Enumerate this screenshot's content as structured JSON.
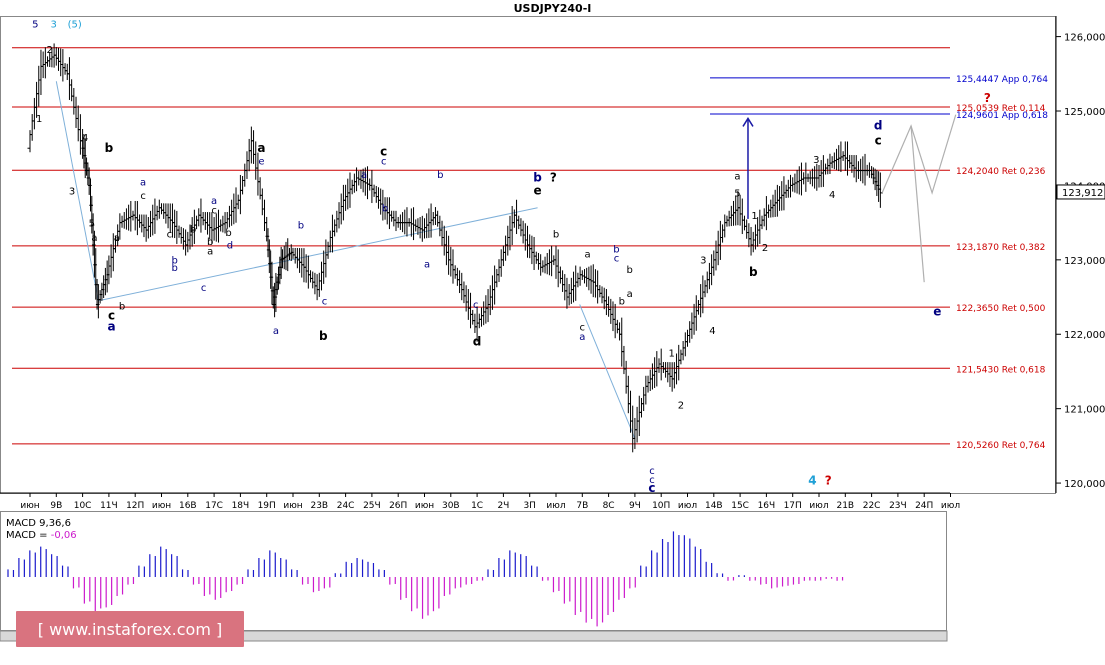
{
  "chart_data": {
    "type": "line",
    "title": "USDJPY240-I",
    "price_axis": {
      "ylim": [
        119.88,
        126.25
      ],
      "ticks": [
        {
          "value": 126.0,
          "label": "126,000"
        },
        {
          "value": 125.0,
          "label": "125,000"
        },
        {
          "value": 124.0,
          "label": "124,000"
        },
        {
          "value": 123.0,
          "label": "123,000"
        },
        {
          "value": 122.0,
          "label": "122,000"
        },
        {
          "value": 121.0,
          "label": "121,000"
        },
        {
          "value": 120.0,
          "label": "120,000"
        }
      ],
      "current_price": {
        "value": 123.912,
        "label": "123,912"
      }
    },
    "time_axis": {
      "labels": [
        "июн",
        "9В",
        "10С",
        "11Ч",
        "12П",
        "июн",
        "16В",
        "17С",
        "18Ч",
        "19П",
        "июн",
        "23В",
        "24С",
        "25Ч",
        "26П",
        "июн",
        "30В",
        "1С",
        "2Ч",
        "3П",
        "июл",
        "7В",
        "8С",
        "9Ч",
        "10П",
        "июл",
        "14В",
        "15С",
        "16Ч",
        "17П",
        "июл",
        "21В",
        "22С",
        "23Ч",
        "24П",
        "июл"
      ]
    },
    "horizontal_levels": [
      {
        "value": 125.85,
        "label": "",
        "color": "#cc0000"
      },
      {
        "value": 125.4447,
        "label": "125,4447 App 0,764",
        "color": "#0000cc"
      },
      {
        "value": 125.0539,
        "label": "125,0539 Ret 0,114",
        "color": "#cc0000"
      },
      {
        "value": 124.9601,
        "label": "124,9601 App 0,618",
        "color": "#0000cc"
      },
      {
        "value": 124.204,
        "label": "124,2040 Ret 0,236",
        "color": "#cc0000"
      },
      {
        "value": 123.187,
        "label": "123,1870 Ret 0,382",
        "color": "#cc0000"
      },
      {
        "value": 122.365,
        "label": "122,3650 Ret 0,500",
        "color": "#cc0000"
      },
      {
        "value": 121.543,
        "label": "121,5430 Ret 0,618",
        "color": "#cc0000"
      },
      {
        "value": 120.526,
        "label": "120,5260 Ret 0,764",
        "color": "#cc0000"
      }
    ],
    "price_path": [
      [
        0,
        124.5
      ],
      [
        0.5,
        125.6
      ],
      [
        1,
        125.75
      ],
      [
        1.5,
        125.5
      ],
      [
        2,
        124.6
      ],
      [
        2.3,
        124.0
      ],
      [
        2.6,
        122.4
      ],
      [
        3,
        122.8
      ],
      [
        3.5,
        123.5
      ],
      [
        4,
        123.6
      ],
      [
        4.5,
        123.4
      ],
      [
        5,
        123.7
      ],
      [
        5.5,
        123.5
      ],
      [
        6,
        123.2
      ],
      [
        6.5,
        123.6
      ],
      [
        7,
        123.4
      ],
      [
        7.5,
        123.5
      ],
      [
        8,
        123.8
      ],
      [
        8.5,
        124.6
      ],
      [
        9,
        123.5
      ],
      [
        9.3,
        122.4
      ],
      [
        9.6,
        123.0
      ],
      [
        10,
        123.1
      ],
      [
        10.5,
        122.9
      ],
      [
        11,
        122.6
      ],
      [
        11.5,
        123.3
      ],
      [
        12,
        123.8
      ],
      [
        12.5,
        124.1
      ],
      [
        13,
        124.0
      ],
      [
        13.5,
        123.7
      ],
      [
        14,
        123.5
      ],
      [
        14.5,
        123.5
      ],
      [
        15,
        123.4
      ],
      [
        15.5,
        123.6
      ],
      [
        16,
        123.0
      ],
      [
        16.5,
        122.6
      ],
      [
        17,
        122.1
      ],
      [
        17.5,
        122.4
      ],
      [
        18,
        123.0
      ],
      [
        18.5,
        123.6
      ],
      [
        19,
        123.2
      ],
      [
        19.5,
        122.9
      ],
      [
        20,
        123.0
      ],
      [
        20.5,
        122.5
      ],
      [
        21,
        122.8
      ],
      [
        21.5,
        122.7
      ],
      [
        22,
        122.4
      ],
      [
        22.5,
        122.0
      ],
      [
        23,
        120.6
      ],
      [
        23.5,
        121.3
      ],
      [
        24,
        121.6
      ],
      [
        24.5,
        121.4
      ],
      [
        25,
        121.9
      ],
      [
        25.5,
        122.4
      ],
      [
        26,
        122.9
      ],
      [
        26.5,
        123.5
      ],
      [
        27,
        123.7
      ],
      [
        27.5,
        123.2
      ],
      [
        28,
        123.6
      ],
      [
        28.5,
        123.8
      ],
      [
        29,
        124.0
      ],
      [
        29.5,
        124.1
      ],
      [
        30,
        124.1
      ],
      [
        30.5,
        124.3
      ],
      [
        31,
        124.4
      ],
      [
        31.5,
        124.2
      ],
      [
        32,
        124.2
      ],
      [
        32.4,
        123.9
      ]
    ],
    "projection_path": [
      [
        32.4,
        123.9
      ],
      [
        33.5,
        124.8
      ],
      [
        34.3,
        123.9
      ],
      [
        35.2,
        124.95
      ]
    ],
    "projection_branch": [
      [
        33.5,
        124.8
      ],
      [
        34.0,
        122.7
      ]
    ],
    "support_line": [
      [
        2.6,
        122.45
      ],
      [
        19.3,
        123.7
      ]
    ],
    "downtrend_line": [
      [
        1,
        125.4
      ],
      [
        2.6,
        122.45
      ]
    ],
    "arrow": {
      "x": 27.3,
      "from": 123.55,
      "to": 124.9
    },
    "wave_labels": [
      {
        "x": 0.2,
        "price": 126.12,
        "text": "5",
        "color": "#000080"
      },
      {
        "x": 0.9,
        "price": 126.12,
        "text": "3",
        "color": "#1fa0d6"
      },
      {
        "x": 1.7,
        "price": 126.12,
        "text": "(5)",
        "color": "#1fa0d6"
      },
      {
        "x": 0.75,
        "price": 125.78,
        "text": "2",
        "color": "#000"
      },
      {
        "x": 0.35,
        "price": 124.85,
        "text": "1",
        "color": "#000"
      },
      {
        "x": 2.1,
        "price": 124.6,
        "text": "4",
        "color": "#000"
      },
      {
        "x": 1.6,
        "price": 123.88,
        "text": "3",
        "color": "#000"
      },
      {
        "x": 2.35,
        "price": 123.45,
        "text": "5",
        "color": "#000"
      },
      {
        "x": 2.45,
        "price": 123.25,
        "text": "a",
        "color": "#000"
      },
      {
        "x": 3.0,
        "price": 124.45,
        "text": "b",
        "color": "#000",
        "bold": true
      },
      {
        "x": 3.1,
        "price": 122.2,
        "text": "c",
        "color": "#000",
        "bold": true
      },
      {
        "x": 3.1,
        "price": 122.05,
        "text": "a",
        "color": "#000080",
        "bold": true
      },
      {
        "x": 3.5,
        "price": 122.33,
        "text": "b",
        "color": "#000"
      },
      {
        "x": 3.3,
        "price": 123.25,
        "text": "a",
        "color": "#000"
      },
      {
        "x": 4.3,
        "price": 124.0,
        "text": "a",
        "color": "#000080"
      },
      {
        "x": 4.3,
        "price": 123.82,
        "text": "c",
        "color": "#000"
      },
      {
        "x": 5.3,
        "price": 123.3,
        "text": "c",
        "color": "#000"
      },
      {
        "x": 5.5,
        "price": 122.95,
        "text": "b",
        "color": "#000080"
      },
      {
        "x": 6.6,
        "price": 122.58,
        "text": "c",
        "color": "#000080"
      },
      {
        "x": 5.5,
        "price": 122.85,
        "text": "b",
        "color": "#000080"
      },
      {
        "x": 6.2,
        "price": 123.37,
        "text": "b",
        "color": "#000"
      },
      {
        "x": 6.85,
        "price": 123.2,
        "text": "b",
        "color": "#000"
      },
      {
        "x": 6.85,
        "price": 123.07,
        "text": "a",
        "color": "#000"
      },
      {
        "x": 7.0,
        "price": 123.75,
        "text": "a",
        "color": "#000080"
      },
      {
        "x": 7.0,
        "price": 123.62,
        "text": "c",
        "color": "#000"
      },
      {
        "x": 7.55,
        "price": 123.32,
        "text": "b",
        "color": "#000"
      },
      {
        "x": 8.8,
        "price": 124.45,
        "text": "a",
        "color": "#000",
        "bold": true
      },
      {
        "x": 8.8,
        "price": 124.28,
        "text": "e",
        "color": "#000080"
      },
      {
        "x": 7.6,
        "price": 123.15,
        "text": "d",
        "color": "#000080"
      },
      {
        "x": 9.35,
        "price": 122.0,
        "text": "a",
        "color": "#000080"
      },
      {
        "x": 10.3,
        "price": 123.42,
        "text": "b",
        "color": "#000080"
      },
      {
        "x": 11.2,
        "price": 122.4,
        "text": "c",
        "color": "#000080"
      },
      {
        "x": 11.15,
        "price": 121.92,
        "text": "b",
        "color": "#000",
        "bold": true
      },
      {
        "x": 12.7,
        "price": 124.1,
        "text": "a",
        "color": "#000080"
      },
      {
        "x": 13.45,
        "price": 124.4,
        "text": "c",
        "color": "#000",
        "bold": true
      },
      {
        "x": 13.45,
        "price": 124.28,
        "text": "c",
        "color": "#000080"
      },
      {
        "x": 13.5,
        "price": 123.65,
        "text": "b",
        "color": "#000080"
      },
      {
        "x": 15.1,
        "price": 122.9,
        "text": "a",
        "color": "#000080"
      },
      {
        "x": 15.6,
        "price": 124.1,
        "text": "b",
        "color": "#000080"
      },
      {
        "x": 16.95,
        "price": 122.35,
        "text": "c",
        "color": "#000080"
      },
      {
        "x": 17.0,
        "price": 121.85,
        "text": "d",
        "color": "#000",
        "bold": true
      },
      {
        "x": 19.3,
        "price": 124.05,
        "text": "b",
        "color": "#000080",
        "bold": true
      },
      {
        "x": 19.9,
        "price": 124.05,
        "text": "?",
        "color": "#000",
        "bold": true
      },
      {
        "x": 19.3,
        "price": 123.88,
        "text": "e",
        "color": "#000",
        "bold": true
      },
      {
        "x": 20.0,
        "price": 123.3,
        "text": "b",
        "color": "#000"
      },
      {
        "x": 21.0,
        "price": 122.05,
        "text": "c",
        "color": "#000"
      },
      {
        "x": 21.0,
        "price": 121.92,
        "text": "a",
        "color": "#000080"
      },
      {
        "x": 21.2,
        "price": 123.03,
        "text": "a",
        "color": "#000"
      },
      {
        "x": 22.3,
        "price": 123.1,
        "text": "b",
        "color": "#000080"
      },
      {
        "x": 22.3,
        "price": 122.98,
        "text": "c",
        "color": "#000080"
      },
      {
        "x": 22.5,
        "price": 122.4,
        "text": "b",
        "color": "#000"
      },
      {
        "x": 22.8,
        "price": 122.82,
        "text": "b",
        "color": "#000"
      },
      {
        "x": 22.8,
        "price": 122.5,
        "text": "a",
        "color": "#000"
      },
      {
        "x": 23.65,
        "price": 120.12,
        "text": "c",
        "color": "#000080"
      },
      {
        "x": 23.65,
        "price": 120.0,
        "text": "c",
        "color": "#000080"
      },
      {
        "x": 23.65,
        "price": 119.88,
        "text": "c",
        "color": "#000080",
        "bold": true
      },
      {
        "x": 24.4,
        "price": 121.7,
        "text": "1",
        "color": "#000"
      },
      {
        "x": 24.75,
        "price": 121.0,
        "text": "2",
        "color": "#000"
      },
      {
        "x": 25.6,
        "price": 122.95,
        "text": "3",
        "color": "#000"
      },
      {
        "x": 25.95,
        "price": 122.0,
        "text": "4",
        "color": "#000"
      },
      {
        "x": 26.9,
        "price": 124.08,
        "text": "a",
        "color": "#000"
      },
      {
        "x": 26.9,
        "price": 123.85,
        "text": "5",
        "color": "#000"
      },
      {
        "x": 27.55,
        "price": 123.55,
        "text": "1",
        "color": "#000"
      },
      {
        "x": 27.95,
        "price": 123.12,
        "text": "2",
        "color": "#000"
      },
      {
        "x": 27.5,
        "price": 122.78,
        "text": "b",
        "color": "#000",
        "bold": true
      },
      {
        "x": 29.9,
        "price": 124.3,
        "text": "3",
        "color": "#000"
      },
      {
        "x": 30.5,
        "price": 123.83,
        "text": "4",
        "color": "#000"
      },
      {
        "x": 32.25,
        "price": 124.75,
        "text": "d",
        "color": "#000080",
        "bold": true
      },
      {
        "x": 32.25,
        "price": 124.55,
        "text": "c",
        "color": "#000",
        "bold": true
      },
      {
        "x": 36.4,
        "price": 125.12,
        "text": "?",
        "color": "#cc0000",
        "bold": true
      },
      {
        "x": 34.5,
        "price": 122.25,
        "text": "e",
        "color": "#000080",
        "bold": true
      },
      {
        "x": 29.75,
        "price": 119.98,
        "text": "4",
        "color": "#1fa0d6",
        "bold": true
      },
      {
        "x": 30.35,
        "price": 119.98,
        "text": "?",
        "color": "#cc0000",
        "bold": true
      }
    ],
    "macd": {
      "label1": "MACD 9,36,6",
      "label2_prefix": "MACD = ",
      "label2_value": "-0,06",
      "histogram": [
        0.2,
        0.5,
        0.7,
        0.8,
        0.6,
        0.3,
        -0.3,
        -0.7,
        -0.9,
        -0.8,
        -0.5,
        -0.2,
        0.3,
        0.6,
        0.8,
        0.6,
        0.2,
        -0.2,
        -0.5,
        -0.6,
        -0.4,
        -0.2,
        0.2,
        0.5,
        0.7,
        0.5,
        0.2,
        -0.2,
        -0.4,
        -0.3,
        0.1,
        0.4,
        0.5,
        0.4,
        0.2,
        -0.2,
        -0.6,
        -0.9,
        -1.1,
        -0.9,
        -0.5,
        -0.3,
        -0.2,
        -0.1,
        0.2,
        0.5,
        0.7,
        0.6,
        0.3,
        -0.1,
        -0.4,
        -0.7,
        -1.0,
        -1.2,
        -1.3,
        -1.0,
        -0.6,
        -0.3,
        0.3,
        0.7,
        1.0,
        1.2,
        1.1,
        0.8,
        0.4,
        0.1,
        -0.1,
        0.05,
        -0.1,
        -0.2,
        -0.3,
        -0.25,
        -0.2,
        -0.1,
        -0.1,
        -0.05,
        -0.1
      ]
    },
    "grid": false,
    "legend": "none"
  },
  "watermark": {
    "text": "[ www.instaforex.com ]",
    "bg": "#d9737f"
  }
}
